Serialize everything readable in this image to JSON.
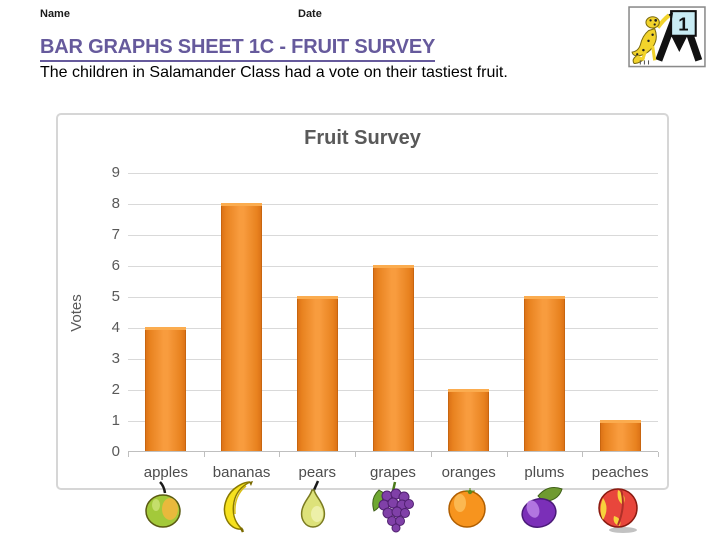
{
  "page": {
    "name_label": "Name",
    "date_label": "Date",
    "title": "BAR GRAPHS SHEET 1C - FRUIT SURVEY",
    "subtitle": "The children in Salamander Class had a vote on their tastiest fruit.",
    "accent_color": "#665A9C"
  },
  "logo": {
    "icon": "math-salamanders-logo",
    "number": "1"
  },
  "chart_data": {
    "type": "bar",
    "title": "Fruit Survey",
    "xlabel": "",
    "ylabel": "Votes",
    "categories": [
      "apples",
      "bananas",
      "pears",
      "grapes",
      "oranges",
      "plums",
      "peaches"
    ],
    "values": [
      4,
      8,
      5,
      6,
      2,
      5,
      1
    ],
    "ylim": [
      0,
      9
    ],
    "ytick_interval": 1,
    "grid": true,
    "legend": "none",
    "bar_color": "#F89C3E",
    "bar_edge_color": "#D96F15",
    "grid_color": "#D9D9D9",
    "axis_text_color": "#595959",
    "category_icons": [
      "apple-icon",
      "banana-icon",
      "pear-icon",
      "grapes-icon",
      "orange-icon",
      "plum-icon",
      "peach-icon"
    ]
  }
}
